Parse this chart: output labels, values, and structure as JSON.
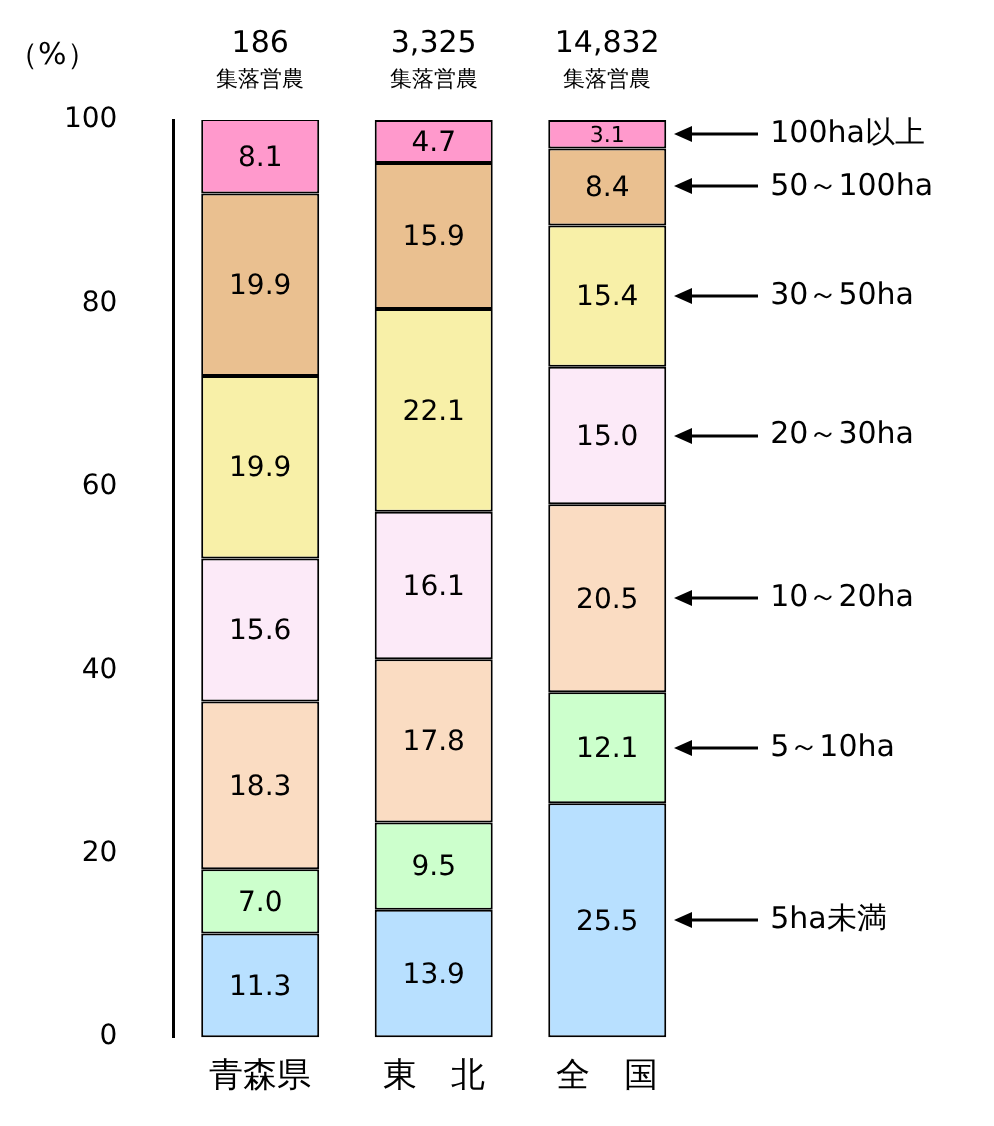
{
  "chart_data": {
    "type": "bar",
    "stacked": true,
    "ylabel": "（%）",
    "categories": [
      "青森県",
      "東　北",
      "全　国"
    ],
    "ylim": [
      0,
      100
    ],
    "yticks": [
      0,
      20,
      40,
      60,
      80,
      100
    ],
    "grid": false,
    "series": [
      {
        "name": "5ha未満",
        "color": "#b8e0ff",
        "values": [
          11.3,
          13.9,
          25.5
        ],
        "value_labels": [
          "11.3",
          "13.9",
          "25.5"
        ]
      },
      {
        "name": "5～10ha",
        "color": "#ccffcc",
        "values": [
          7.0,
          9.5,
          12.1
        ],
        "value_labels": [
          "7.0",
          "9.5",
          "12.1"
        ]
      },
      {
        "name": "10～20ha",
        "color": "#fadcc2",
        "values": [
          18.3,
          17.8,
          20.5
        ],
        "value_labels": [
          "18.3",
          "17.8",
          "20.5"
        ]
      },
      {
        "name": "20～30ha",
        "color": "#fceaf8",
        "values": [
          15.6,
          16.1,
          15.0
        ],
        "value_labels": [
          "15.6",
          "16.1",
          "15.0"
        ]
      },
      {
        "name": "30～50ha",
        "color": "#f8f0a8",
        "values": [
          19.9,
          22.1,
          15.4
        ],
        "value_labels": [
          "19.9",
          "22.1",
          "15.4"
        ]
      },
      {
        "name": "50～100ha",
        "color": "#eac090",
        "values": [
          19.9,
          15.9,
          8.4
        ],
        "value_labels": [
          "19.9",
          "15.9",
          "8.4"
        ]
      },
      {
        "name": "100ha以上",
        "color": "#ff99cc",
        "values": [
          8.1,
          4.7,
          3.1
        ],
        "value_labels": [
          "8.1",
          "4.7",
          "3.1"
        ]
      }
    ],
    "legend": "right",
    "annotations": [
      "186\n集落営農",
      "3,325\n集落営農",
      "14,832\n集落営農"
    ]
  }
}
